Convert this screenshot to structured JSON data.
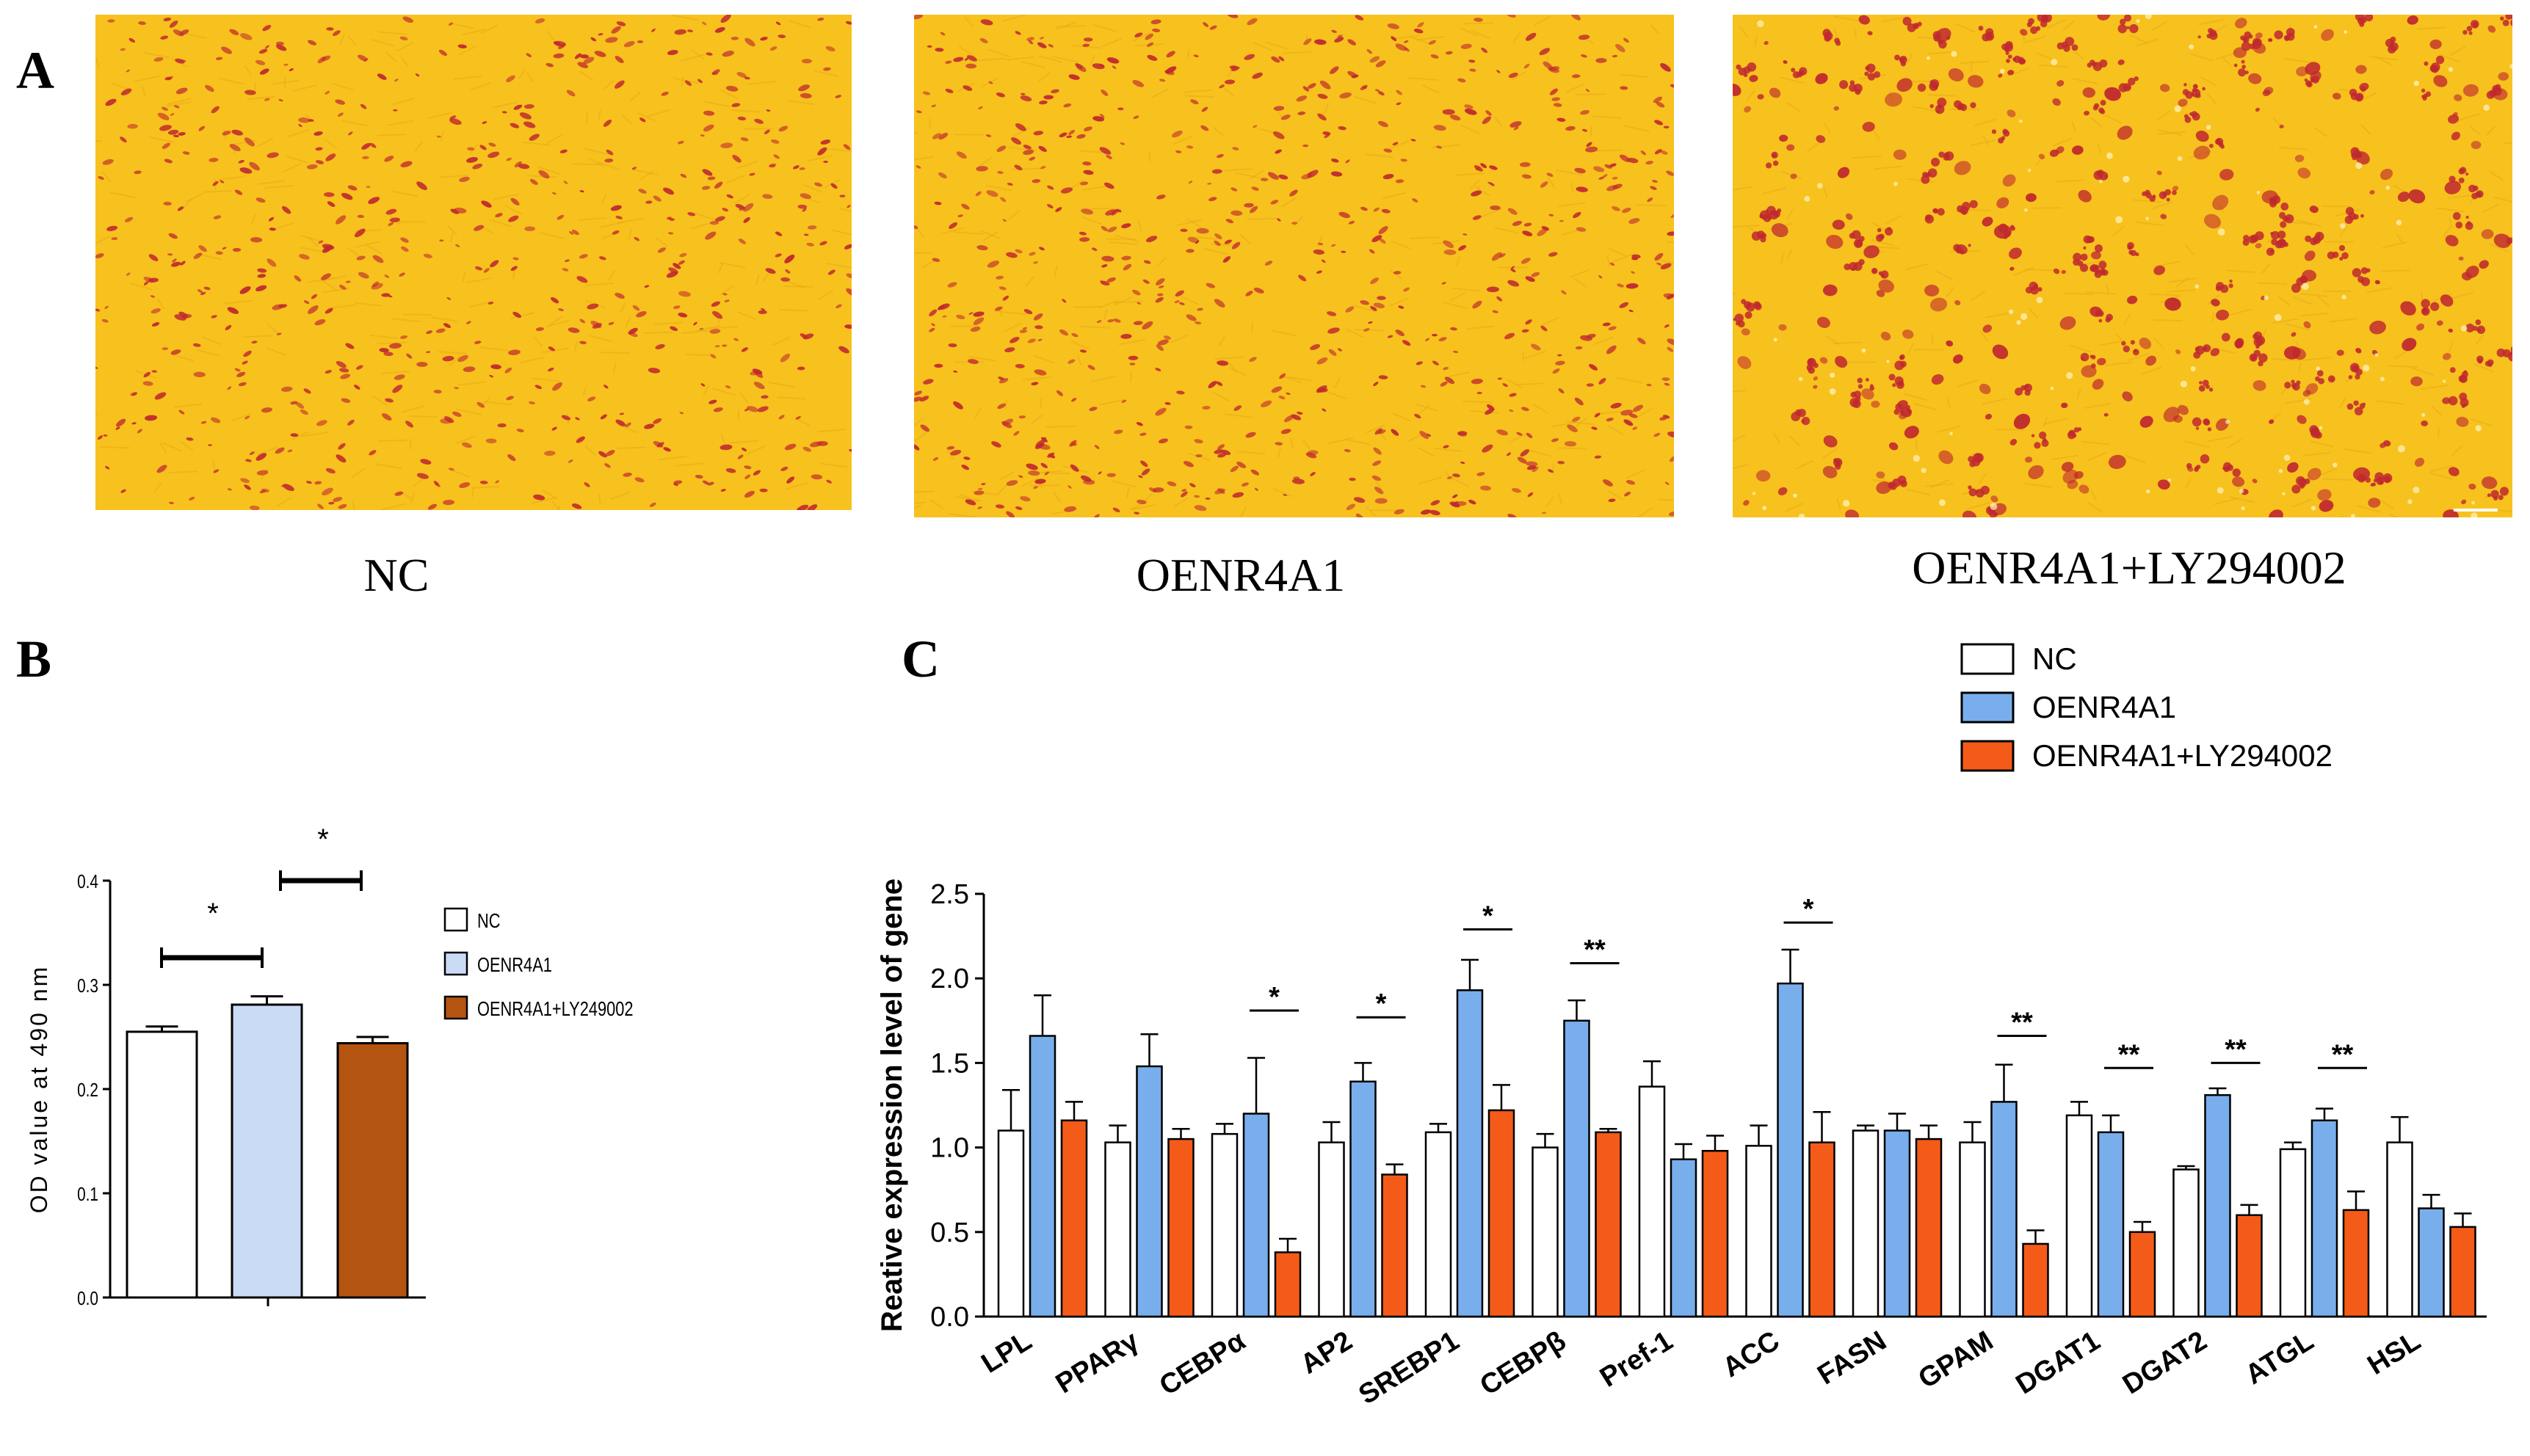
{
  "panels": {
    "a": "A",
    "b": "B",
    "c": "C"
  },
  "micrographs": [
    {
      "caption": "NC"
    },
    {
      "caption": "OENR4A1"
    },
    {
      "caption": "OENR4A1+LY294002"
    }
  ],
  "colors": {
    "stain_background": "#f7c21d",
    "stain_lipid": "#c0282f",
    "nc": "#ffffff",
    "b_oenr4a1": "#c9dbf5",
    "b_ly": "#b45411",
    "c_oenr4a1": "#79aeec",
    "c_ly": "#f45b18"
  },
  "chart_data": [
    {
      "type": "bar",
      "panel": "B",
      "categories": [
        "NC",
        "OENR4A1",
        "OENR4A1+LY249002"
      ],
      "values": [
        0.255,
        0.281,
        0.244
      ],
      "errors": [
        0.005,
        0.008,
        0.006
      ],
      "ylabel": "OD value at 490 nm",
      "xlabel": "",
      "ylim": [
        0,
        0.4
      ],
      "yticks": [
        "0.0",
        "0.1",
        "0.2",
        "0.3",
        "0.4"
      ],
      "legend": [
        "NC",
        "OENR4A1",
        "OENR4A1+LY249002"
      ],
      "legend_position": "right",
      "significance": [
        {
          "from": 0,
          "to": 1,
          "label": "*"
        },
        {
          "from": 1,
          "to": 2,
          "label": "*"
        }
      ]
    },
    {
      "type": "bar",
      "panel": "C",
      "categories": [
        "LPL",
        "PPARγ",
        "CEBPα",
        "AP2",
        "SREBP1",
        "CEBPβ",
        "Pref-1",
        "ACC",
        "FASN",
        "GPAM",
        "DGAT1",
        "DGAT2",
        "ATGL",
        "HSL"
      ],
      "series": [
        {
          "name": "NC",
          "values": [
            1.1,
            1.03,
            1.08,
            1.03,
            1.09,
            1.0,
            1.36,
            1.01,
            1.1,
            1.03,
            1.19,
            0.87,
            0.99,
            1.03
          ],
          "errors": [
            0.24,
            0.1,
            0.06,
            0.12,
            0.05,
            0.08,
            0.15,
            0.12,
            0.03,
            0.12,
            0.08,
            0.02,
            0.04,
            0.15
          ]
        },
        {
          "name": "OENR4A1",
          "values": [
            1.66,
            1.48,
            1.2,
            1.39,
            1.93,
            1.75,
            0.93,
            1.97,
            1.1,
            1.27,
            1.09,
            1.31,
            1.16,
            0.64
          ]
        },
        {
          "name": "OENR4A1+LY294002",
          "values": [
            1.16,
            1.05,
            0.38,
            0.84,
            1.22,
            1.09,
            0.98,
            1.03,
            1.05,
            0.43,
            0.5,
            0.6,
            0.63,
            0.53
          ]
        }
      ],
      "errors_series2": [
        0.24,
        0.19,
        0.33,
        0.11,
        0.18,
        0.12,
        0.09,
        0.2,
        0.1,
        0.22,
        0.1,
        0.04,
        0.07,
        0.08
      ],
      "errors_series3": [
        0.11,
        0.06,
        0.08,
        0.06,
        0.15,
        0.02,
        0.09,
        0.18,
        0.08,
        0.08,
        0.06,
        0.06,
        0.11,
        0.08
      ],
      "ylabel": "Reative expression level of gene",
      "xlabel": "",
      "ylim": [
        0,
        2.5
      ],
      "yticks": [
        "0.0",
        "0.5",
        "1.0",
        "1.5",
        "2.0",
        "2.5"
      ],
      "legend": [
        "NC",
        "OENR4A1",
        "OENR4A1+LY294002"
      ],
      "legend_position": "top-right",
      "significance": [
        {
          "category": "CEBPα",
          "label": "*",
          "y": 1.81
        },
        {
          "category": "AP2",
          "label": "*",
          "y": 1.77
        },
        {
          "category": "SREBP1",
          "label": "*",
          "y": 2.29
        },
        {
          "category": "CEBPβ",
          "label": "**",
          "y": 2.09
        },
        {
          "category": "ACC",
          "label": "*",
          "y": 2.33
        },
        {
          "category": "GPAM",
          "label": "**",
          "y": 1.66
        },
        {
          "category": "DGAT1",
          "label": "**",
          "y": 1.47
        },
        {
          "category": "DGAT2",
          "label": "**",
          "y": 1.5
        },
        {
          "category": "ATGL",
          "label": "**",
          "y": 1.47
        }
      ]
    }
  ]
}
